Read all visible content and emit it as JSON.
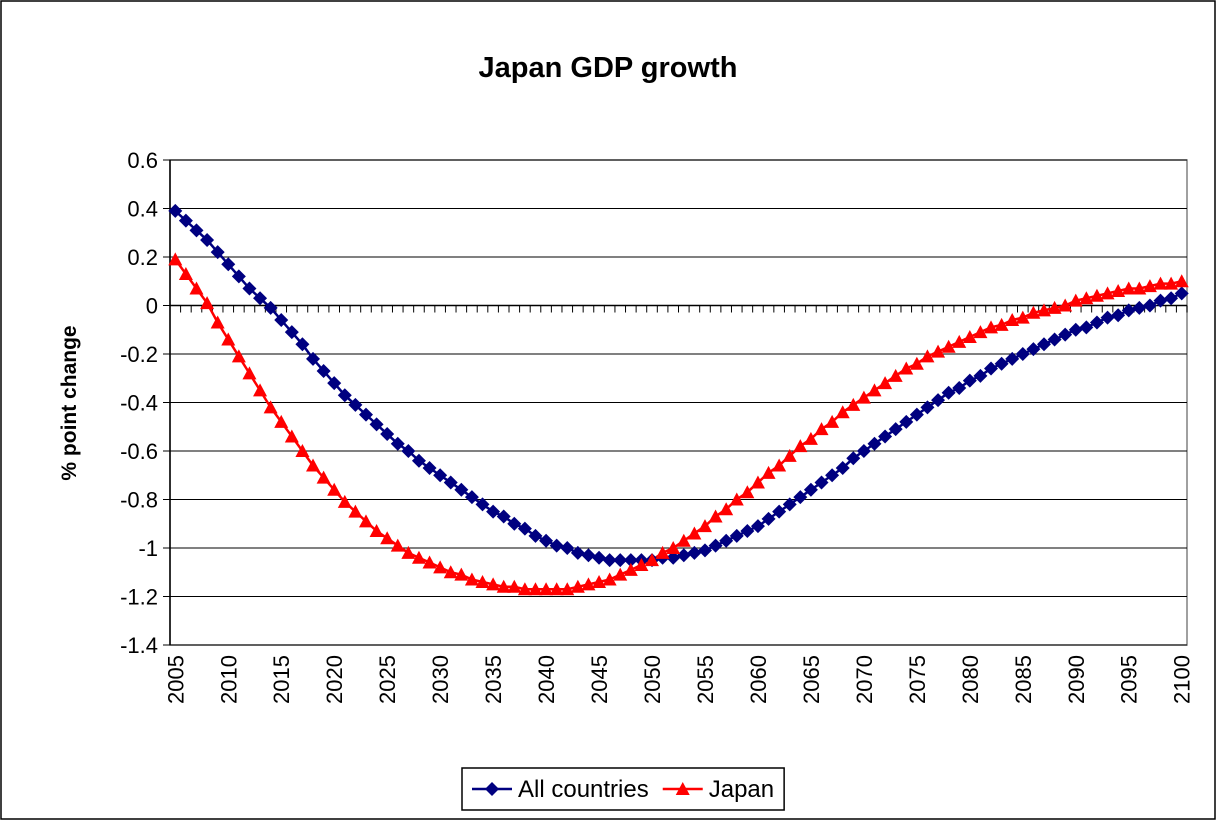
{
  "chart_data": {
    "type": "line",
    "title": "Japan GDP growth",
    "y_label": "% point change",
    "categories": [
      "2005",
      null,
      null,
      null,
      null,
      "2010",
      null,
      null,
      null,
      null,
      "2015",
      null,
      null,
      null,
      null,
      "2020",
      null,
      null,
      null,
      null,
      "2025",
      null,
      null,
      null,
      null,
      "2030",
      null,
      null,
      null,
      null,
      "2035",
      null,
      null,
      null,
      null,
      "2040",
      null,
      null,
      null,
      null,
      "2045",
      null,
      null,
      null,
      null,
      "2050",
      null,
      null,
      null,
      null,
      "2055",
      null,
      null,
      null,
      null,
      "2060",
      null,
      null,
      null,
      null,
      "2065",
      null,
      null,
      null,
      null,
      "2070",
      null,
      null,
      null,
      null,
      "2075",
      null,
      null,
      null,
      null,
      "2080",
      null,
      null,
      null,
      null,
      "2085",
      null,
      null,
      null,
      null,
      "2090",
      null,
      null,
      null,
      null,
      "2095",
      null,
      null,
      null,
      null,
      "2100"
    ],
    "series": [
      {
        "name": "All countries",
        "color": "#000080",
        "marker": "diamond",
        "values": [
          0.39,
          0.35,
          0.31,
          0.27,
          0.22,
          0.17,
          0.12,
          0.07,
          0.03,
          -0.01,
          -0.06,
          -0.11,
          -0.16,
          -0.22,
          -0.27,
          -0.32,
          -0.37,
          -0.41,
          -0.45,
          -0.49,
          -0.53,
          -0.57,
          -0.6,
          -0.64,
          -0.67,
          -0.7,
          -0.73,
          -0.76,
          -0.79,
          -0.82,
          -0.85,
          -0.87,
          -0.9,
          -0.92,
          -0.95,
          -0.97,
          -0.99,
          -1.0,
          -1.02,
          -1.03,
          -1.04,
          -1.05,
          -1.05,
          -1.05,
          -1.05,
          -1.05,
          -1.04,
          -1.04,
          -1.03,
          -1.02,
          -1.01,
          -0.99,
          -0.97,
          -0.95,
          -0.93,
          -0.91,
          -0.88,
          -0.85,
          -0.82,
          -0.79,
          -0.76,
          -0.73,
          -0.7,
          -0.67,
          -0.63,
          -0.6,
          -0.57,
          -0.54,
          -0.51,
          -0.48,
          -0.45,
          -0.42,
          -0.39,
          -0.36,
          -0.34,
          -0.31,
          -0.29,
          -0.26,
          -0.24,
          -0.22,
          -0.2,
          -0.18,
          -0.16,
          -0.14,
          -0.12,
          -0.1,
          -0.09,
          -0.07,
          -0.05,
          -0.04,
          -0.02,
          -0.01,
          0.0,
          0.02,
          0.03,
          0.05
        ]
      },
      {
        "name": "Japan",
        "color": "#ff0000",
        "marker": "triangle",
        "values": [
          0.19,
          0.13,
          0.07,
          0.01,
          -0.07,
          -0.14,
          -0.21,
          -0.28,
          -0.35,
          -0.42,
          -0.48,
          -0.54,
          -0.6,
          -0.66,
          -0.71,
          -0.76,
          -0.81,
          -0.85,
          -0.89,
          -0.93,
          -0.96,
          -0.99,
          -1.02,
          -1.04,
          -1.06,
          -1.08,
          -1.1,
          -1.11,
          -1.13,
          -1.14,
          -1.15,
          -1.16,
          -1.16,
          -1.17,
          -1.17,
          -1.17,
          -1.17,
          -1.17,
          -1.16,
          -1.15,
          -1.14,
          -1.13,
          -1.11,
          -1.09,
          -1.07,
          -1.05,
          -1.02,
          -1.0,
          -0.97,
          -0.94,
          -0.91,
          -0.87,
          -0.84,
          -0.8,
          -0.77,
          -0.73,
          -0.69,
          -0.66,
          -0.62,
          -0.58,
          -0.55,
          -0.51,
          -0.48,
          -0.44,
          -0.41,
          -0.38,
          -0.35,
          -0.32,
          -0.29,
          -0.26,
          -0.24,
          -0.21,
          -0.19,
          -0.17,
          -0.15,
          -0.13,
          -0.11,
          -0.09,
          -0.08,
          -0.06,
          -0.05,
          -0.03,
          -0.02,
          -0.01,
          0.0,
          0.02,
          0.03,
          0.04,
          0.05,
          0.06,
          0.07,
          0.07,
          0.08,
          0.09,
          0.09,
          0.1
        ]
      }
    ],
    "ylim": [
      -1.4,
      0.6
    ],
    "yticks": [
      0.6,
      0.4,
      0.2,
      0,
      -0.2,
      -0.4,
      -0.6,
      -0.8,
      -1,
      -1.2,
      -1.4
    ],
    "grid": true,
    "legend": "bottom"
  }
}
